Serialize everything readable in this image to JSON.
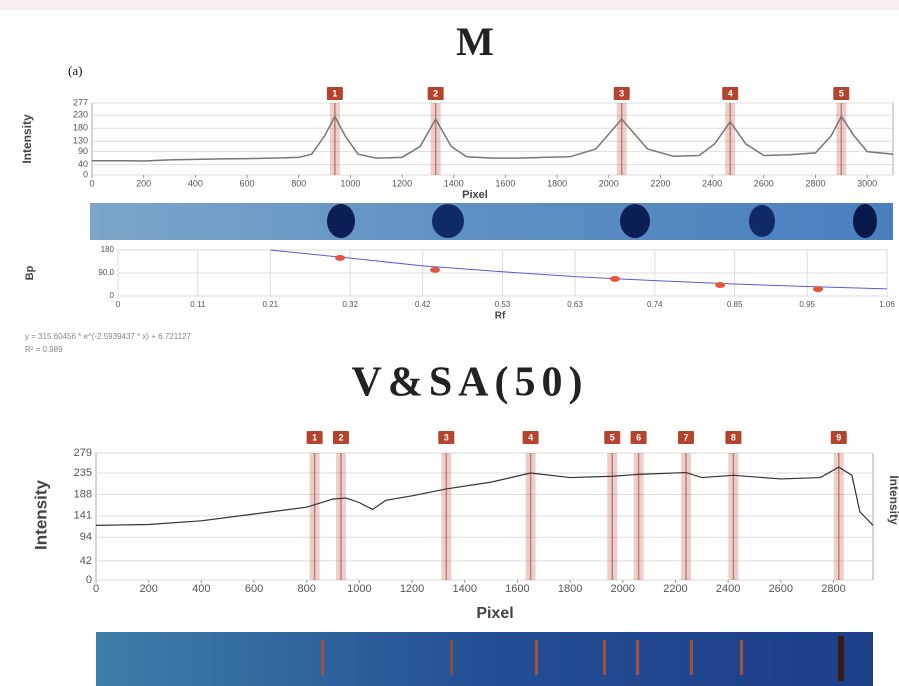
{
  "chart_data": [
    {
      "type": "line",
      "title": "M",
      "annotation": "(a)",
      "x_label": "Pixel",
      "y_label": "Intensity",
      "color": "#777777",
      "peak_color": "#b5442f",
      "grid": true,
      "x": [
        0,
        100,
        200,
        300,
        400,
        500,
        600,
        700,
        800,
        850,
        900,
        940,
        980,
        1030,
        1100,
        1200,
        1270,
        1330,
        1390,
        1450,
        1550,
        1650,
        1750,
        1850,
        1950,
        2050,
        2150,
        2250,
        2350,
        2410,
        2470,
        2530,
        2600,
        2700,
        2800,
        2860,
        2900,
        2950,
        3000,
        3100
      ],
      "values": [
        55,
        55,
        54,
        58,
        60,
        62,
        63,
        65,
        68,
        80,
        150,
        225,
        150,
        80,
        65,
        68,
        110,
        215,
        110,
        70,
        65,
        65,
        68,
        70,
        100,
        215,
        100,
        72,
        75,
        120,
        205,
        120,
        75,
        78,
        85,
        150,
        225,
        150,
        90,
        80
      ],
      "peaks": [
        940,
        1330,
        2050,
        2470,
        2900
      ],
      "peak_labels": [
        "1",
        "2",
        "3",
        "4",
        "5"
      ],
      "xlim": [
        0,
        3100
      ],
      "xticks": [
        0,
        200,
        400,
        600,
        800,
        1000,
        1200,
        1400,
        1600,
        1800,
        2000,
        2200,
        2400,
        2600,
        2800,
        3000
      ],
      "ylim": [
        0,
        277
      ],
      "yticks": [
        0,
        40,
        90,
        130,
        180,
        230,
        277
      ]
    },
    {
      "type": "scatter",
      "x_label": "Rf",
      "y_label": "Bp",
      "color": "#e8553a",
      "fit_color": "#5b5bd6",
      "grid": true,
      "x": [
        0.306,
        0.437,
        0.685,
        0.83,
        0.965
      ],
      "values": [
        149,
        102,
        67,
        43,
        27
      ],
      "fit_x": [
        0.21,
        0.32,
        0.42,
        0.53,
        0.63,
        0.74,
        0.85,
        0.95,
        1.06
      ],
      "fit_values": [
        180,
        148,
        118,
        95,
        76,
        60,
        47,
        37,
        28
      ],
      "equation": "y = 315.60456 * e^(-2.5939437 * x) + 6.721127",
      "r_squared": "R² = 0.989",
      "xlim": [
        0,
        1.06
      ],
      "xticks": [
        0,
        0.11,
        0.21,
        0.32,
        0.42,
        0.53,
        0.63,
        0.74,
        0.85,
        0.95,
        1.06
      ],
      "ylim": [
        0,
        180
      ],
      "yticks": [
        0,
        {
          "value": 90,
          "label": "90.0"
        },
        180
      ]
    },
    {
      "type": "line",
      "title": "V&SA(50)",
      "x_label": "Pixel",
      "y_label": "Intensity",
      "y2_label": "Intensity",
      "color": "#333333",
      "peak_color": "#b5442f",
      "grid": true,
      "x": [
        0,
        200,
        400,
        600,
        800,
        900,
        950,
        1000,
        1050,
        1100,
        1200,
        1330,
        1500,
        1650,
        1800,
        1960,
        2060,
        2240,
        2300,
        2420,
        2600,
        2750,
        2820,
        2870,
        2900,
        2950
      ],
      "values": [
        120,
        122,
        130,
        145,
        160,
        178,
        180,
        170,
        155,
        175,
        185,
        200,
        215,
        235,
        225,
        228,
        232,
        236,
        225,
        230,
        222,
        225,
        248,
        230,
        150,
        120
      ],
      "peaks": [
        830,
        930,
        1330,
        1650,
        1960,
        2060,
        2240,
        2420,
        2820
      ],
      "peak_labels": [
        "1",
        "2",
        "3",
        "4",
        "5",
        "6",
        "7",
        "8",
        "9"
      ],
      "xlim": [
        0,
        2950
      ],
      "xticks": [
        0,
        200,
        400,
        600,
        800,
        1000,
        1200,
        1400,
        1600,
        1800,
        2000,
        2200,
        2400,
        2600,
        2800
      ],
      "ylim": [
        0,
        279
      ],
      "yticks": [
        0,
        42,
        94,
        141,
        188,
        235,
        279
      ]
    }
  ]
}
